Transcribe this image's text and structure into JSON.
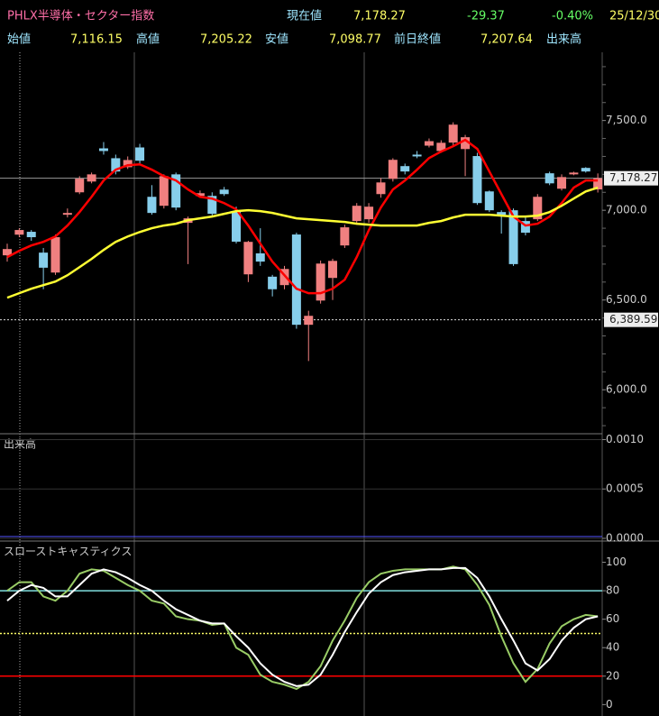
{
  "header": {
    "title": "PHLX半導体・セクター指数",
    "current_label": "現在値",
    "current": "7,178.27",
    "change": "-29.37",
    "change_pct": "-0.40%",
    "date": "25/12/30",
    "open_label": "始値",
    "open": "7,116.15",
    "high_label": "高値",
    "high": "7,205.22",
    "low_label": "安値",
    "low": "7,098.77",
    "prev_label": "前日終値",
    "prev": "7,207.64",
    "volume_label": "出来高"
  },
  "chart_data": [
    {
      "type": "candlestick",
      "ylim": [
        5760,
        7880
      ],
      "yticks": [
        {
          "value": 6000,
          "label": "6,000.0"
        },
        {
          "value": 6500,
          "label": "6,500.0"
        },
        {
          "value": 7000,
          "label": "7,000.0"
        },
        {
          "value": 7500,
          "label": "7,500.0"
        }
      ],
      "yminorticks": [
        5800,
        5900,
        6100,
        6200,
        6300,
        6400,
        6600,
        6700,
        6800,
        6900,
        7100,
        7200,
        7300,
        7400,
        7600,
        7700,
        7800
      ],
      "up_color": "#f08080",
      "down_color": "#87ceeb",
      "open": [
        6749,
        6864,
        6880,
        6764,
        6653,
        6975,
        7100,
        7160,
        7345,
        7290,
        7240,
        7350,
        7075,
        7025,
        7200,
        6930,
        7080,
        7080,
        7115,
        6995,
        6643,
        6760,
        6630,
        6583,
        6865,
        6362,
        6497,
        6623,
        6804,
        6940,
        6950,
        7090,
        7175,
        7246,
        7310,
        7360,
        7330,
        7377,
        7341,
        7302,
        7105,
        6990,
        7000,
        6940,
        6950,
        7206,
        7120,
        7200,
        7236,
        7116.15
      ],
      "high": [
        6814,
        6900,
        6890,
        6790,
        6865,
        7010,
        7190,
        7210,
        7380,
        7310,
        7300,
        7370,
        7140,
        7200,
        7210,
        6965,
        7110,
        7100,
        7130,
        7020,
        6830,
        6900,
        6640,
        6690,
        6875,
        6440,
        6720,
        6730,
        6920,
        7040,
        7040,
        7180,
        7290,
        7260,
        7330,
        7400,
        7390,
        7490,
        7420,
        7320,
        7110,
        7000,
        7010,
        6960,
        7090,
        7215,
        7200,
        7215,
        7240,
        7205.22
      ],
      "low": [
        6714,
        6850,
        6830,
        6560,
        6640,
        6960,
        7090,
        7150,
        7310,
        7200,
        7230,
        7260,
        6975,
        7010,
        7000,
        6700,
        7070,
        6970,
        7080,
        6815,
        6600,
        6690,
        6520,
        6560,
        6340,
        6160,
        6480,
        6500,
        6790,
        6920,
        6930,
        7070,
        7160,
        7200,
        7290,
        7350,
        7320,
        7360,
        7190,
        7030,
        6990,
        6870,
        6690,
        6860,
        6940,
        7140,
        7110,
        7195,
        7210,
        7098.77
      ],
      "close": [
        6784,
        6890,
        6850,
        6680,
        6850,
        6985,
        7176,
        7200,
        7330,
        7216,
        7280,
        7276,
        6985,
        7190,
        7015,
        6955,
        7095,
        6980,
        7090,
        6825,
        6824,
        6714,
        6560,
        6673,
        6362,
        6412,
        6703,
        6718,
        6905,
        7025,
        7020,
        7155,
        7281,
        7216,
        7300,
        7385,
        7376,
        7477,
        7407,
        7040,
        7000,
        6975,
        6700,
        6875,
        7075,
        7150,
        7185,
        7210,
        7216,
        7178.27
      ],
      "lines": [
        {
          "color": "#ff0000",
          "values": [
            6739,
            6774,
            6804,
            6824,
            6854,
            6915,
            6990,
            7075,
            7166,
            7226,
            7251,
            7256,
            7226,
            7190,
            7166,
            7116,
            7075,
            7065,
            7040,
            7005,
            6915,
            6814,
            6714,
            6638,
            6563,
            6538,
            6538,
            6563,
            6613,
            6739,
            6889,
            7015,
            7116,
            7166,
            7226,
            7291,
            7327,
            7357,
            7392,
            7342,
            7216,
            7090,
            6965,
            6915,
            6925,
            6965,
            7040,
            7126,
            7166,
            7166
          ]
        },
        {
          "color": "#ffff33",
          "values": [
            6513,
            6538,
            6563,
            6583,
            6603,
            6638,
            6683,
            6729,
            6779,
            6824,
            6854,
            6879,
            6900,
            6915,
            6925,
            6945,
            6955,
            6965,
            6980,
            6995,
            7000,
            6995,
            6985,
            6970,
            6955,
            6950,
            6945,
            6940,
            6935,
            6925,
            6920,
            6915,
            6915,
            6915,
            6915,
            6930,
            6940,
            6960,
            6975,
            6975,
            6975,
            6970,
            6965,
            6965,
            6970,
            6990,
            7025,
            7065,
            7105,
            7126
          ]
        }
      ],
      "ref_lines": [
        {
          "value": 7178.27,
          "label": "7,178.27",
          "style": "solid"
        },
        {
          "value": 6389.59,
          "label": "6,389.59",
          "style": "dotted"
        }
      ]
    },
    {
      "type": "bar",
      "title": "出来高",
      "ylim": [
        0,
        0.00105
      ],
      "yticks": [
        {
          "value": 0,
          "label": "0.0000"
        },
        {
          "value": 0.0005,
          "label": "0.0005"
        },
        {
          "value": 0.001,
          "label": "0.0010"
        }
      ]
    },
    {
      "type": "line",
      "title": "スローストキャスティクス",
      "ylim": [
        -8,
        113
      ],
      "yticks": [
        0,
        20,
        40,
        60,
        80,
        100
      ],
      "series": [
        {
          "color": "#99cc66",
          "values": [
            80,
            86,
            86,
            76,
            73,
            80,
            92,
            95,
            94,
            89,
            84,
            80,
            73,
            71,
            62,
            60,
            59,
            56,
            57,
            40,
            35,
            21,
            16,
            14,
            11,
            16,
            27,
            45,
            59,
            75,
            86,
            92,
            94,
            95,
            95,
            95,
            95,
            97,
            95,
            84,
            70,
            48,
            29,
            16,
            25,
            43,
            55,
            60,
            63,
            62
          ]
        },
        {
          "color": "#ffffff",
          "values": [
            73,
            80,
            84,
            82,
            76,
            76,
            84,
            92,
            95,
            93,
            89,
            84,
            80,
            73,
            67,
            63,
            59,
            57,
            57,
            48,
            40,
            29,
            21,
            16,
            13,
            14,
            21,
            35,
            51,
            65,
            78,
            86,
            91,
            93,
            94,
            95,
            95,
            96,
            96,
            89,
            76,
            60,
            45,
            29,
            24,
            32,
            45,
            54,
            60,
            62
          ]
        }
      ],
      "hlines": [
        {
          "value": 80,
          "color": "#80e0e0",
          "style": "solid"
        },
        {
          "value": 50,
          "color": "#ffff66",
          "style": "dotted"
        },
        {
          "value": 20,
          "color": "#ff0000",
          "style": "solid"
        }
      ]
    }
  ]
}
